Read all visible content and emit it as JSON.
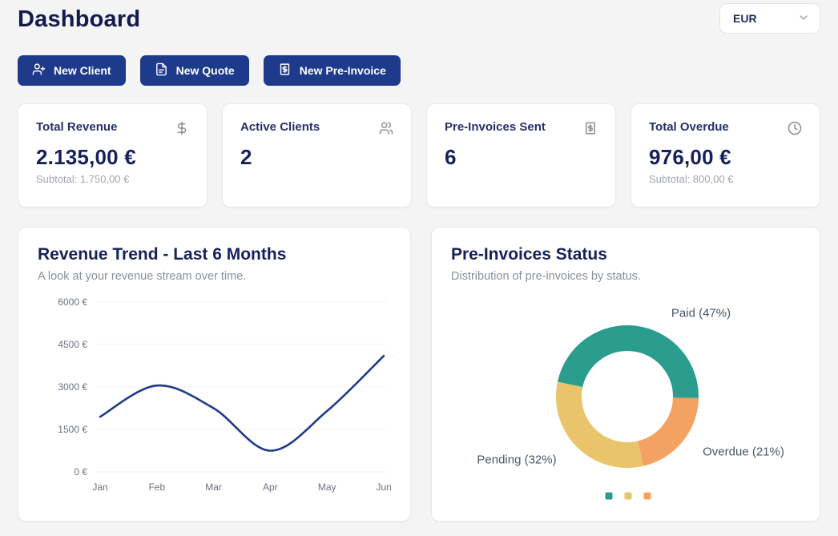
{
  "page": {
    "title": "Dashboard"
  },
  "currency_select": {
    "value": "EUR",
    "chevron_icon": "chevron-down-icon"
  },
  "actions": [
    {
      "label": "New Client",
      "icon": "user-plus-icon"
    },
    {
      "label": "New Quote",
      "icon": "file-text-icon"
    },
    {
      "label": "New Pre-Invoice",
      "icon": "receipt-dollar-icon"
    }
  ],
  "stats": [
    {
      "label": "Total Revenue",
      "value": "2.135,00 €",
      "subtext": "Subtotal: 1.750,00 €",
      "icon": "dollar-sign-icon"
    },
    {
      "label": "Active Clients",
      "value": "2",
      "subtext": "",
      "icon": "users-icon"
    },
    {
      "label": "Pre-Invoices Sent",
      "value": "6",
      "subtext": "",
      "icon": "receipt-dollar-icon"
    },
    {
      "label": "Total Overdue",
      "value": "976,00 €",
      "subtext": "Subtotal: 800,00 €",
      "icon": "clock-icon"
    }
  ],
  "colors": {
    "accent_navy": "#1e3a8a",
    "title_navy": "#16215a",
    "page_background": "#f4f4f5",
    "muted_gray": "#9ca3af",
    "teal": "#2a9d8f",
    "yellow": "#e9c46a",
    "orange": "#f4a261"
  },
  "chart_data": [
    {
      "type": "line",
      "title": "Revenue Trend - Last 6 Months",
      "subtitle": "A look at your revenue stream over time.",
      "categories": [
        "Jan",
        "Feb",
        "Mar",
        "Apr",
        "May",
        "Jun"
      ],
      "values": [
        1950,
        3050,
        2250,
        750,
        2150,
        4100
      ],
      "xlabel": "",
      "ylabel": "",
      "ylim": [
        0,
        6000
      ],
      "yticks": [
        0,
        1500,
        3000,
        4500,
        6000
      ],
      "ytick_labels": [
        "0 €",
        "1500 €",
        "3000 €",
        "4500 €",
        "6000 €"
      ],
      "line_color": "#1e3a8a",
      "grid": true,
      "smooth": true,
      "legend": "none"
    },
    {
      "type": "pie",
      "donut": true,
      "title": "Pre-Invoices Status",
      "subtitle": "Distribution of pre-invoices by status.",
      "slices": [
        {
          "name": "Paid",
          "label": "Paid (47%)",
          "value": 47,
          "color": "#2a9d8f"
        },
        {
          "name": "Pending",
          "label": "Pending (32%)",
          "value": 32,
          "color": "#e9c46a"
        },
        {
          "name": "Overdue",
          "label": "Overdue (21%)",
          "value": 21,
          "color": "#f4a261"
        }
      ],
      "clockwise_draw_order": [
        0,
        2,
        1
      ],
      "rotation_deg_from_top": 282,
      "legend_position": "bottom"
    }
  ]
}
